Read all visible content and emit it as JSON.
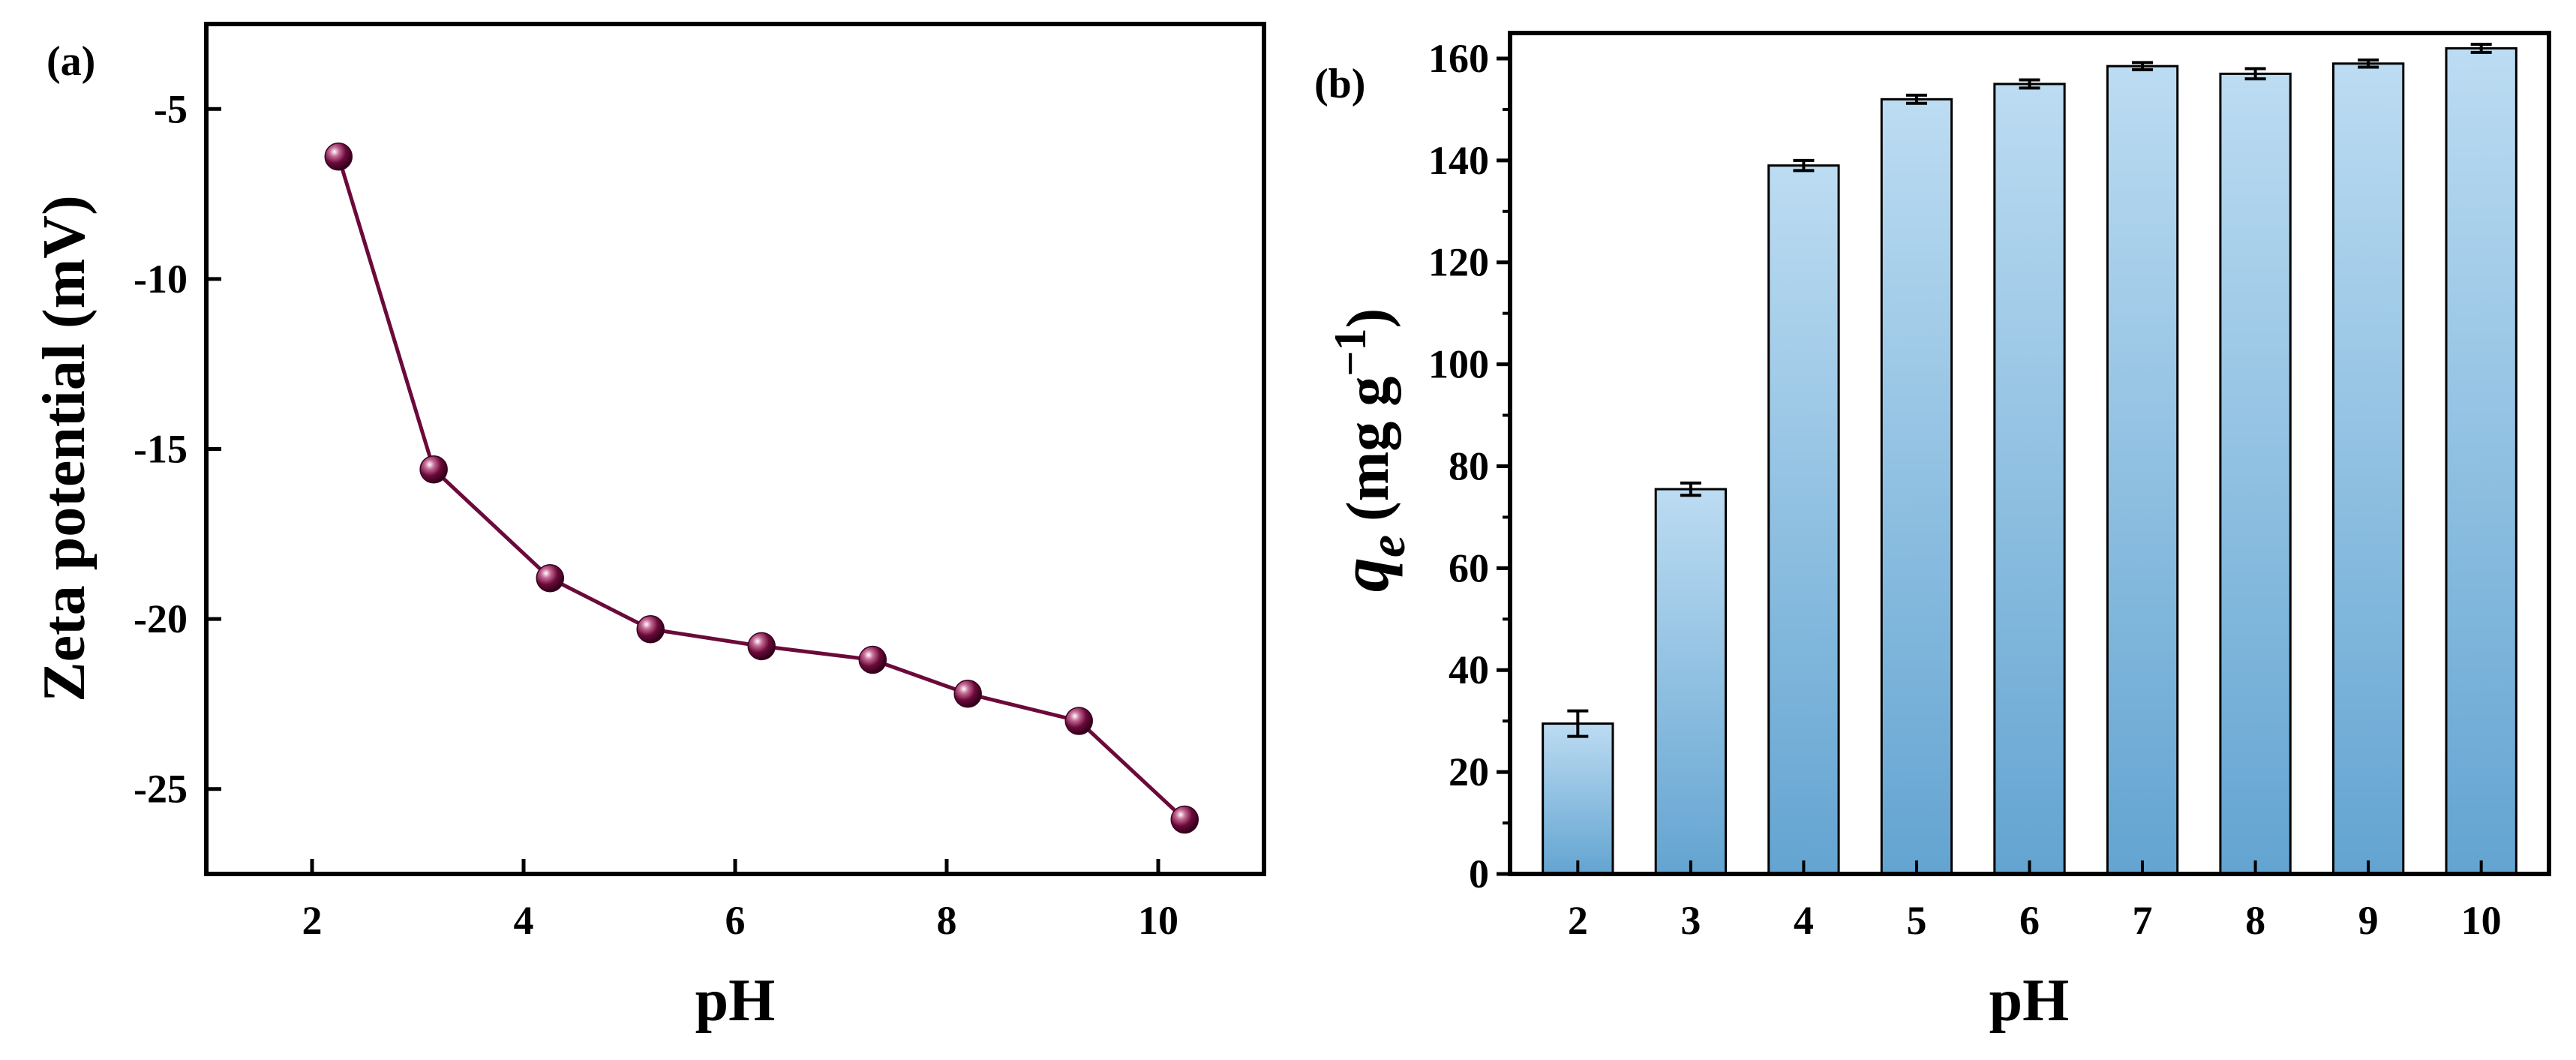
{
  "chart_data": [
    {
      "panel_label": "(a)",
      "type": "line",
      "xlabel": "pH",
      "ylabel": "Zeta potential (mV)",
      "xlim": [
        1,
        11
      ],
      "ylim": [
        -27.5,
        -2.5
      ],
      "xticks": [
        2,
        4,
        6,
        8,
        10
      ],
      "yticks": [
        -5,
        -10,
        -15,
        -20,
        -25
      ],
      "series": [
        {
          "name": "Zeta potential",
          "color": "#6b0a3a",
          "x": [
            2.25,
            3.15,
            4.25,
            5.2,
            6.25,
            7.3,
            8.2,
            9.25,
            10.25
          ],
          "y": [
            -6.4,
            -15.6,
            -18.8,
            -20.3,
            -20.8,
            -21.2,
            -22.2,
            -23.0,
            -25.9
          ]
        }
      ]
    },
    {
      "panel_label": "(b)",
      "type": "bar",
      "xlabel": "pH",
      "ylabel_main": "q",
      "ylabel_sub": "e",
      "ylabel_units": "(mg g",
      "ylabel_sup": "−1",
      "ylabel_close": ")",
      "ylim": [
        0,
        165
      ],
      "yticks": [
        0,
        20,
        40,
        60,
        80,
        100,
        120,
        140,
        160
      ],
      "categories": [
        "2",
        "3",
        "4",
        "5",
        "6",
        "7",
        "8",
        "9",
        "10"
      ],
      "values": [
        29.5,
        75.5,
        139,
        152,
        155,
        158.5,
        157,
        159,
        162
      ],
      "errors": [
        2.5,
        1.2,
        1.0,
        0.8,
        0.8,
        0.7,
        1.0,
        0.7,
        0.8
      ],
      "bar_color_top": "#bcdcf2",
      "bar_color_bottom": "#63a4d1"
    }
  ]
}
